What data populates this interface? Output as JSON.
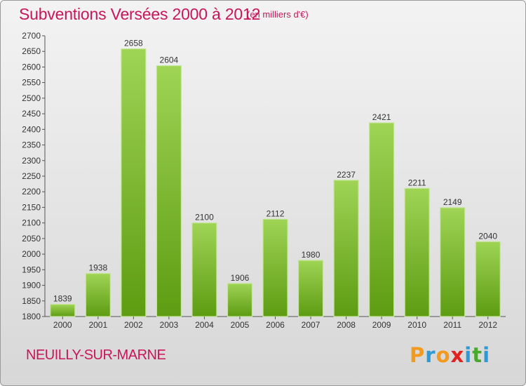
{
  "header": {
    "title": "Subventions Versées 2000 à 2012",
    "unit": "(en milliers d'€)"
  },
  "footer": {
    "place": "NEUILLY-SUR-MARNE",
    "logo": [
      "P",
      "r",
      "o",
      "x",
      "i",
      "t",
      "i"
    ]
  },
  "colors": {
    "title": "#c8165a",
    "bar_top": "#9fd455",
    "bar_bottom": "#5d9c12",
    "logo": [
      "#f39a1e",
      "#2d9ad6",
      "#f39a1e",
      "#e2211c",
      "#2d9ad6",
      "#4aa82c",
      "#2d9ad6"
    ]
  },
  "chart_data": {
    "type": "bar",
    "title": "Subventions Versées 2000 à 2012",
    "categories": [
      "2000",
      "2001",
      "2002",
      "2003",
      "2004",
      "2005",
      "2006",
      "2007",
      "2008",
      "2009",
      "2010",
      "2011",
      "2012"
    ],
    "values": [
      1839,
      1938,
      2658,
      2604,
      2100,
      1906,
      2112,
      1980,
      2237,
      2421,
      2211,
      2149,
      2040
    ],
    "ylim": [
      1800,
      2700
    ],
    "yticks": [
      1800,
      1850,
      1900,
      1950,
      2000,
      2050,
      2100,
      2150,
      2200,
      2250,
      2300,
      2350,
      2400,
      2450,
      2500,
      2550,
      2600,
      2650,
      2700
    ],
    "grid": false,
    "legend": "none"
  }
}
